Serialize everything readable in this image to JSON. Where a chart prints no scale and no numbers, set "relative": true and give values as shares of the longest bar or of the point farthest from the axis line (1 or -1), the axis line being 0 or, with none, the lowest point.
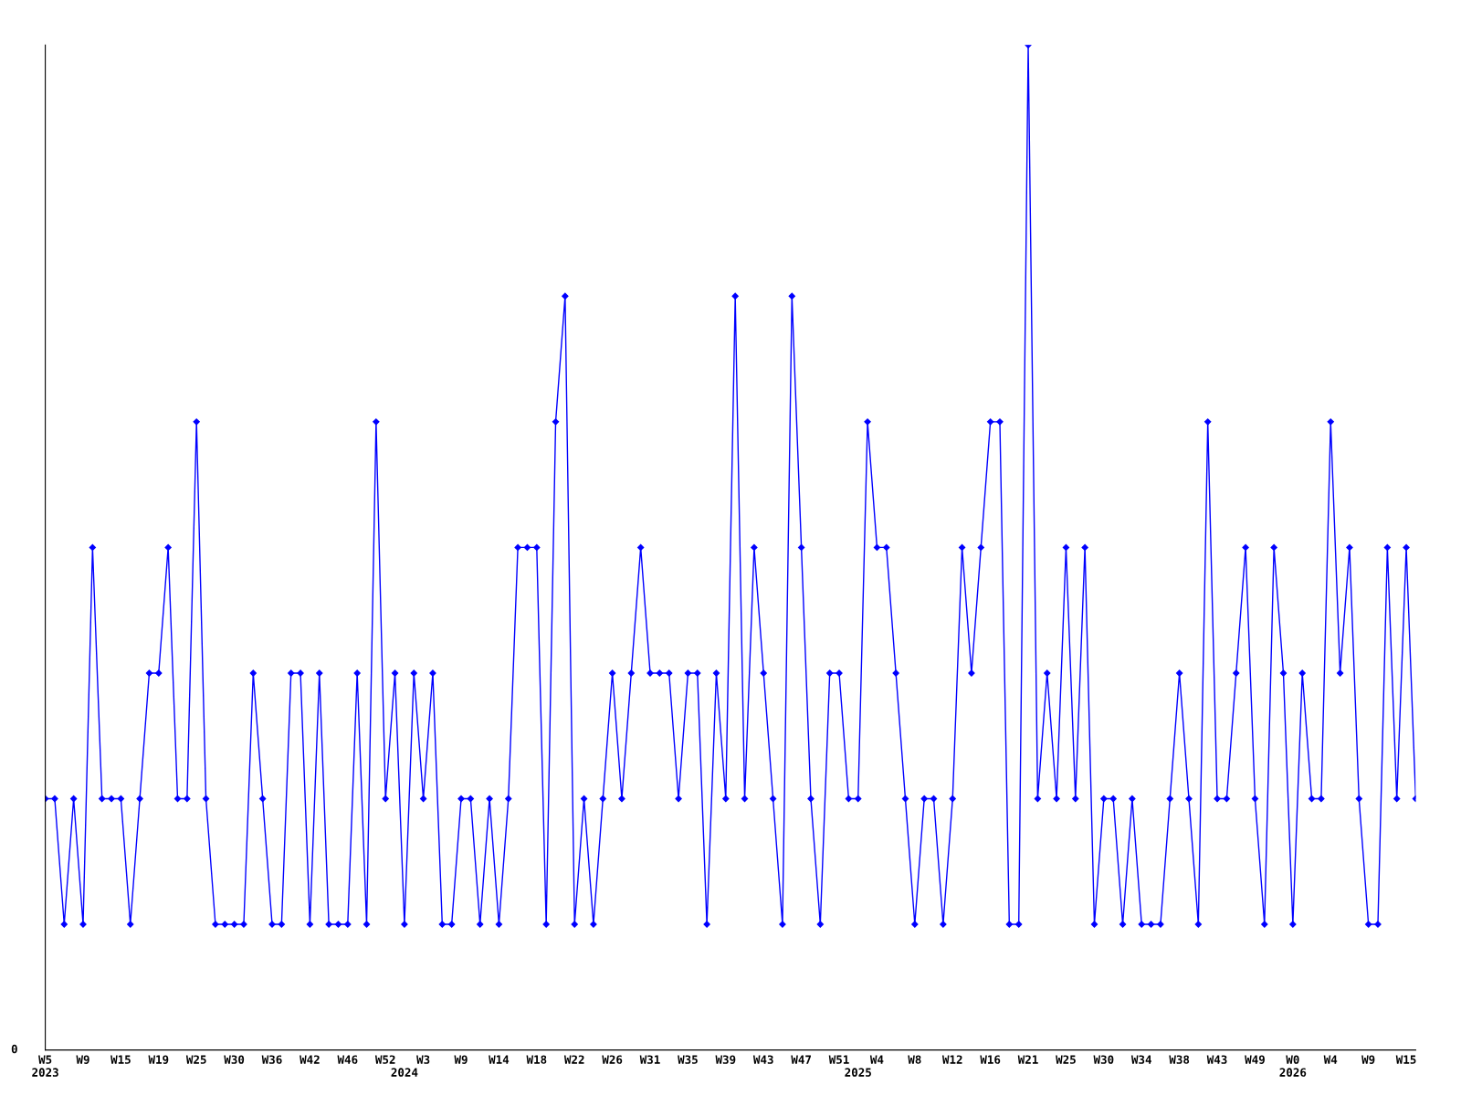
{
  "chart_data": {
    "type": "line",
    "relative": true,
    "color": "#0000ff",
    "marker": "diamond",
    "line_style": "solid",
    "grid": false,
    "legend": false,
    "annotations": [
      "0"
    ],
    "categories": [
      "W5\n2023",
      null,
      null,
      null,
      "W9",
      null,
      null,
      null,
      "W15",
      null,
      null,
      null,
      "W19",
      null,
      null,
      null,
      "W25",
      null,
      null,
      null,
      "W30",
      null,
      null,
      null,
      "W36",
      null,
      null,
      null,
      "W42",
      null,
      null,
      null,
      "W46",
      null,
      null,
      null,
      "W52",
      null,
      "\n2024",
      null,
      "W3",
      null,
      null,
      null,
      "W9",
      null,
      null,
      null,
      "W14",
      null,
      null,
      null,
      "W18",
      null,
      null,
      null,
      "W22",
      null,
      null,
      null,
      "W26",
      null,
      null,
      null,
      "W31",
      null,
      null,
      null,
      "W35",
      null,
      null,
      null,
      "W39",
      null,
      null,
      null,
      "W43",
      null,
      null,
      null,
      "W47",
      null,
      null,
      null,
      "W51",
      null,
      "\n2025",
      null,
      "W4",
      null,
      null,
      null,
      "W8",
      null,
      null,
      null,
      "W12",
      null,
      null,
      null,
      "W16",
      null,
      null,
      null,
      "W21",
      null,
      null,
      null,
      "W25",
      null,
      null,
      null,
      "W30",
      null,
      null,
      null,
      "W34",
      null,
      null,
      null,
      "W38",
      null,
      null,
      null,
      "W43",
      null,
      null,
      null,
      "W49",
      null,
      null,
      null,
      "W0\n2026",
      null,
      null,
      null,
      "W4",
      null,
      null,
      null,
      "W9",
      null,
      null,
      null,
      "W15",
      null
    ],
    "values": [
      0.25,
      0.25,
      0.125,
      0.25,
      0.125,
      0.5,
      0.25,
      0.25,
      0.25,
      0.125,
      0.25,
      0.375,
      0.375,
      0.5,
      0.25,
      0.25,
      0.625,
      0.25,
      0.125,
      0.125,
      0.125,
      0.125,
      0.375,
      0.25,
      0.125,
      0.125,
      0.375,
      0.375,
      0.125,
      0.375,
      0.125,
      0.125,
      0.125,
      0.375,
      0.125,
      0.625,
      0.25,
      0.375,
      0.125,
      0.375,
      0.25,
      0.375,
      0.125,
      0.125,
      0.25,
      0.25,
      0.125,
      0.25,
      0.125,
      0.25,
      0.5,
      0.5,
      0.5,
      0.125,
      0.625,
      0.75,
      0.125,
      0.25,
      0.125,
      0.25,
      0.375,
      0.25,
      0.375,
      0.5,
      0.375,
      0.375,
      0.375,
      0.25,
      0.375,
      0.375,
      0.125,
      0.375,
      0.25,
      0.75,
      0.25,
      0.5,
      0.375,
      0.25,
      0.125,
      0.75,
      0.5,
      0.25,
      0.125,
      0.375,
      0.375,
      0.25,
      0.25,
      0.625,
      0.5,
      0.5,
      0.375,
      0.25,
      0.125,
      0.25,
      0.25,
      0.125,
      0.25,
      0.5,
      0.375,
      0.5,
      0.625,
      0.625,
      0.125,
      0.125,
      1,
      0.25,
      0.375,
      0.25,
      0.5,
      0.25,
      0.5,
      0.125,
      0.25,
      0.25,
      0.125,
      0.25,
      0.125,
      0.125,
      0.125,
      0.25,
      0.375,
      0.25,
      0.125,
      0.625,
      0.25,
      0.25,
      0.375,
      0.5,
      0.25,
      0.125,
      0.5,
      0.375,
      0.125,
      0.375,
      0.25,
      0.25,
      0.625,
      0.375,
      0.5,
      0.25,
      0.125,
      0.125,
      0.5,
      0.25,
      0.5,
      0.25
    ]
  }
}
